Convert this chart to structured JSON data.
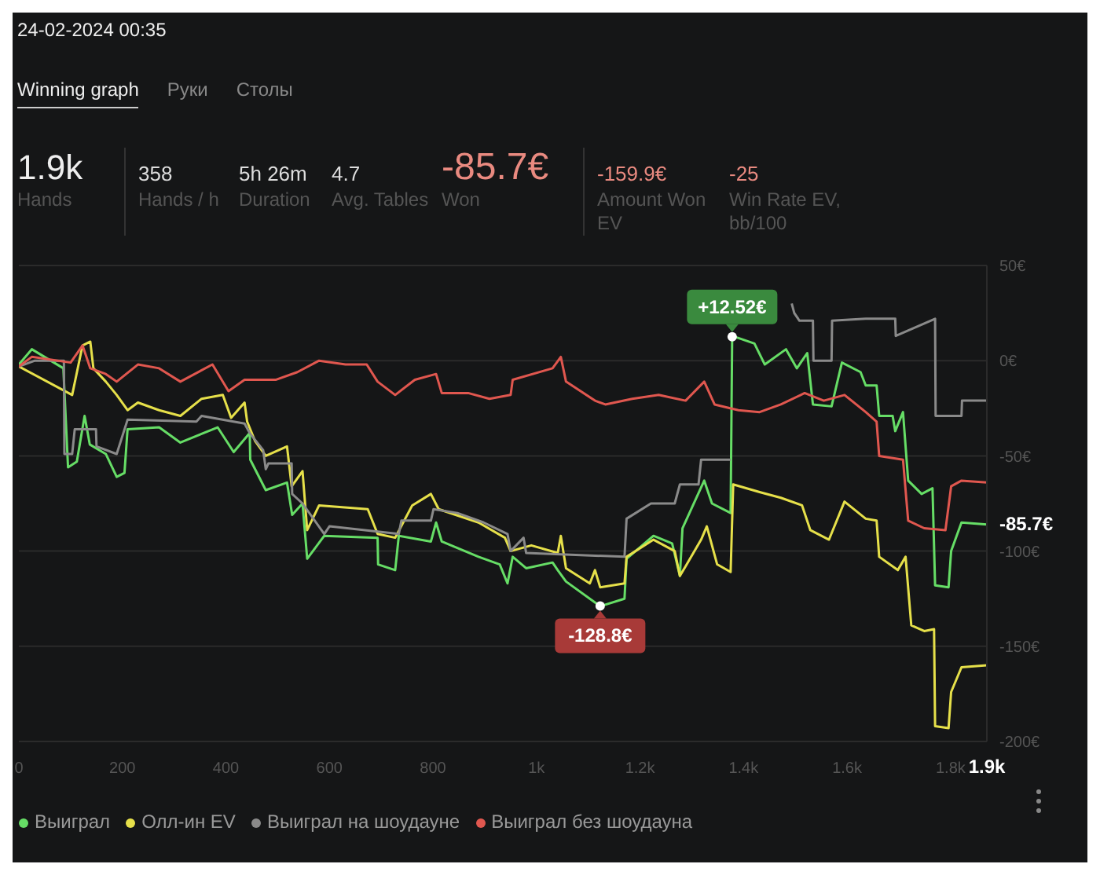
{
  "chart_data": {
    "type": "line",
    "title": "24-02-2024 00:35",
    "annotations": [
      "Winning graph",
      "Руки",
      "Столы",
      "1.9k",
      "Hands",
      "358",
      "Hands / h",
      "5h 26m",
      "Duration",
      "4.7",
      "Avg. Tables",
      "-85.7€",
      "Won",
      "-159.9€",
      "Amount Won EV",
      "-25",
      "Win Rate EV, bb/100",
      {
        "text": "+12.52€",
        "x": 1378,
        "y": 12.52
      },
      {
        "text": "-128.8€",
        "x": 1123,
        "y": -128.8
      },
      {
        "text": "-85.7€",
        "x": 1870,
        "y": -85.7
      }
    ],
    "xlim": [
      0,
      1870
    ],
    "xticks": [
      0,
      200,
      400,
      600,
      800,
      {
        "value": 1000,
        "label": "1k"
      },
      {
        "value": 1200,
        "label": "1.2k"
      },
      {
        "value": 1400,
        "label": "1.4k"
      },
      {
        "value": 1600,
        "label": "1.6k"
      },
      {
        "value": 1800,
        "label": "1.8k"
      },
      {
        "value": 1870,
        "label": "1.9k"
      }
    ],
    "ylim": [
      -200,
      50
    ],
    "yticks": [
      {
        "value": 50,
        "label": "50€"
      },
      {
        "value": 0,
        "label": "0€"
      },
      {
        "value": -50,
        "label": "-50€"
      },
      {
        "value": -100,
        "label": "-100€"
      },
      {
        "value": -150,
        "label": "-150€"
      },
      {
        "value": -200,
        "label": "-200€"
      }
    ],
    "grid": "y",
    "legend": "bottom",
    "marker": "none",
    "line_style": "solid",
    "series": [
      {
        "name": "Выиграл",
        "color": "#66dd66",
        "x": [
          0,
          25,
          86,
          95,
          112,
          127,
          137,
          168,
          189,
          204,
          210,
          271,
          312,
          384,
          415,
          446,
          447,
          477,
          518,
          528,
          548,
          557,
          590,
          693,
          694,
          727,
          734,
          796,
          806,
          817,
          888,
          929,
          944,
          954,
          980,
          1031,
          1041,
          1057,
          1113,
          1123,
          1170,
          1174,
          1226,
          1262,
          1277,
          1282,
          1324,
          1339,
          1375,
          1378,
          1421,
          1441,
          1482,
          1503,
          1523,
          1534,
          1570,
          1590,
          1626,
          1636,
          1657,
          1662,
          1688,
          1693,
          1708,
          1718,
          1744,
          1765,
          1770,
          1796,
          1801,
          1821,
          1870
        ],
        "values": [
          -2,
          6,
          -4,
          -56,
          -53,
          -29,
          -44,
          -49,
          -61,
          -59,
          -36,
          -35,
          -43,
          -35,
          -48,
          -38,
          -52,
          -68,
          -64,
          -81,
          -75,
          -104,
          -92,
          -93,
          -107,
          -110,
          -92,
          -95,
          -85,
          -95,
          -103,
          -107,
          -117,
          -103,
          -109,
          -106,
          -110,
          -116,
          -127,
          -129,
          -125,
          -104,
          -92,
          -96,
          -113,
          -88,
          -63,
          -75,
          -80,
          13,
          9,
          -2,
          6,
          -4,
          4,
          -23,
          -24,
          -1,
          -6,
          -13,
          -13,
          -29,
          -29,
          -37,
          -27,
          -63,
          -70,
          -67,
          -118,
          -119,
          -100,
          -85,
          -86
        ]
      },
      {
        "name": "Олл-ин EV",
        "color": "#e6e04a",
        "x": [
          0,
          103,
          123,
          138,
          144,
          168,
          189,
          210,
          230,
          271,
          312,
          353,
          394,
          410,
          436,
          441,
          456,
          477,
          518,
          527,
          548,
          557,
          580,
          674,
          693,
          727,
          760,
          796,
          811,
          888,
          939,
          950,
          990,
          1041,
          1047,
          1057,
          1103,
          1113,
          1123,
          1170,
          1174,
          1226,
          1267,
          1277,
          1288,
          1318,
          1329,
          1349,
          1375,
          1380,
          1431,
          1472,
          1513,
          1529,
          1565,
          1595,
          1636,
          1657,
          1662,
          1698,
          1713,
          1724,
          1749,
          1768,
          1770,
          1796,
          1801,
          1821,
          1870
        ],
        "values": [
          -3,
          -18,
          8,
          10,
          -4,
          -11,
          -18,
          -26,
          -22,
          -26,
          -29,
          -20,
          -18,
          -30,
          -22,
          -32,
          -42,
          -50,
          -45,
          -66,
          -58,
          -89,
          -76,
          -78,
          -91,
          -93,
          -76,
          -70,
          -78,
          -85,
          -93,
          -100,
          -97,
          -101,
          -92,
          -109,
          -117,
          -110,
          -119,
          -117,
          -103,
          -94,
          -100,
          -113,
          -108,
          -94,
          -87,
          -107,
          -111,
          -65,
          -69,
          -72,
          -76,
          -89,
          -94,
          -74,
          -83,
          -84,
          -103,
          -110,
          -103,
          -139,
          -142,
          -141,
          -192,
          -193,
          -174,
          -161,
          -160
        ]
      },
      {
        "name": "Выиграл на шоудауне",
        "color": "#8a8a8a",
        "x": [
          0,
          31,
          87,
          88,
          103,
          108,
          149,
          150,
          189,
          210,
          343,
          353,
          436,
          446,
          472,
          477,
          482,
          527,
          528,
          548,
          590,
          600,
          734,
          739,
          796,
          801,
          847,
          898,
          944,
          950,
          975,
          980,
          1170,
          1174,
          1221,
          1267,
          1277,
          1313,
          1318,
          1375,
          1378,
          1493,
          1498,
          1508,
          1534,
          1535,
          1570,
          1571,
          1636,
          1693,
          1694,
          1770,
          1771,
          1821,
          1822,
          1870
        ],
        "values": [
          -3,
          0,
          0,
          -49,
          -49,
          -36,
          -36,
          -45,
          -49,
          -31,
          -32,
          -29,
          -33,
          -38,
          -47,
          -57,
          -54,
          -54,
          -70,
          -75,
          -91,
          -87,
          -91,
          -84,
          -84,
          -78,
          -80,
          -85,
          -91,
          -100,
          -93,
          -101,
          -103,
          -83,
          -75,
          -75,
          -65,
          -65,
          -52,
          -52,
          null,
          30,
          25,
          21,
          21,
          0,
          0,
          21,
          22,
          22,
          13,
          22,
          -29,
          -29,
          -21,
          -21
        ]
      },
      {
        "name": "Выиграл без шоудауна",
        "color": "#e0574f",
        "x": [
          0,
          25,
          100,
          123,
          138,
          168,
          189,
          230,
          271,
          312,
          374,
          405,
          436,
          497,
          538,
          580,
          631,
          672,
          693,
          727,
          765,
          806,
          817,
          868,
          909,
          950,
          954,
          1031,
          1047,
          1057,
          1113,
          1133,
          1185,
          1236,
          1288,
          1324,
          1344,
          1390,
          1431,
          1472,
          1518,
          1555,
          1595,
          1636,
          1657,
          1662,
          1708,
          1718,
          1749,
          1790,
          1801,
          1821,
          1870
        ],
        "values": [
          -3,
          2,
          -1,
          8,
          -4,
          -7,
          -11,
          -2,
          -4,
          -11,
          -2,
          -16,
          -10,
          -10,
          -6,
          0,
          -2,
          -2,
          -11,
          -18,
          -10,
          -7,
          -17,
          -17,
          -20,
          -18,
          -10,
          -4,
          2,
          -11,
          -21,
          -23,
          -20,
          -18,
          -21,
          -11,
          -23,
          -26,
          -27,
          -23,
          -17,
          -21,
          -18,
          -27,
          -32,
          -50,
          -52,
          -84,
          -88,
          -89,
          -66,
          -63,
          -64
        ]
      }
    ]
  }
}
